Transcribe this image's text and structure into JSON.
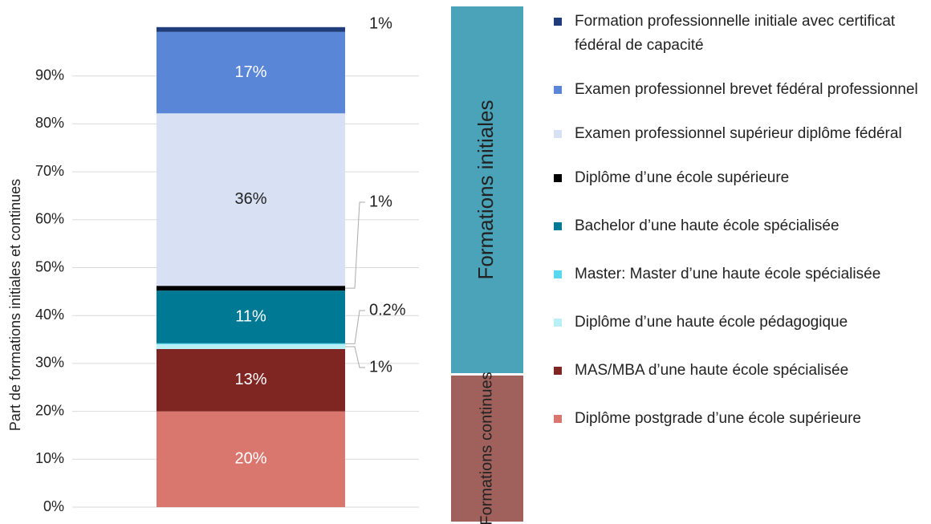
{
  "chart_data": {
    "type": "stacked-bar",
    "y_label": "Part de formations initiales et continues",
    "ylim": [
      0,
      100
    ],
    "yticks": [
      {
        "value": 0,
        "label": "0%"
      },
      {
        "value": 10,
        "label": "10%"
      },
      {
        "value": 20,
        "label": "20%"
      },
      {
        "value": 30,
        "label": "30%"
      },
      {
        "value": 40,
        "label": "40%"
      },
      {
        "value": 50,
        "label": "50%"
      },
      {
        "value": 60,
        "label": "60%"
      },
      {
        "value": 70,
        "label": "70%"
      },
      {
        "value": 80,
        "label": "80%"
      },
      {
        "value": 90,
        "label": "90%"
      }
    ],
    "grid": true,
    "series": [
      {
        "name": "Diplôme postgrade d’une école supérieure",
        "color": "#d9776f",
        "values": [
          20
        ],
        "value_labels": [
          "20%"
        ]
      },
      {
        "name": "MAS/MBA d’une haute école spécialisée",
        "color": "#7f2622",
        "values": [
          13
        ],
        "value_labels": [
          "13%"
        ]
      },
      {
        "name": "Diplôme d’une haute école pédagogique",
        "color": "#b8f0f5",
        "values": [
          1
        ],
        "value_labels": [
          "1%"
        ]
      },
      {
        "name": "Master: Master d’une haute école spécialisée",
        "color": "#5ad7f0",
        "values": [
          0.2
        ],
        "value_labels": [
          "0.2%"
        ]
      },
      {
        "name": "Bachelor d’une haute école spécialisée",
        "color": "#007a94",
        "values": [
          11
        ],
        "value_labels": [
          "11%"
        ]
      },
      {
        "name": "Diplôme d’une école supérieure",
        "color": "#000000",
        "values": [
          1
        ],
        "value_labels": [
          "1%"
        ]
      },
      {
        "name": "Examen professionnel supérieur diplôme fédéral",
        "color": "#d7e1f3",
        "values": [
          36
        ],
        "value_labels": [
          "36%"
        ]
      },
      {
        "name": "Examen professionnel brevet fédéral professionnel",
        "color": "#5a86d8",
        "values": [
          17
        ],
        "value_labels": [
          "17%"
        ]
      },
      {
        "name": "Formation professionnelle initiale avec certificat fédéral de capacité",
        "color": "#1f3d7a",
        "values": [
          1
        ],
        "value_labels": [
          "1%"
        ]
      }
    ],
    "groups": [
      {
        "label": "Formations initiales",
        "color": "#4aa3b8"
      },
      {
        "label": "Formations continues",
        "color": "#a0615c"
      }
    ]
  }
}
